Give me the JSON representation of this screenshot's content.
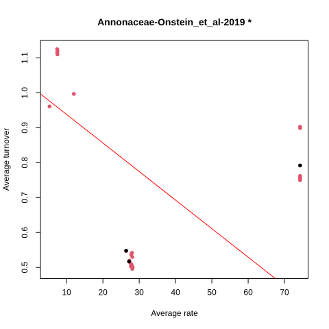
{
  "chart_data": {
    "type": "scatter",
    "title": "Annonaceae-Onstein_et_al-2019 *",
    "xlabel": "Average rate",
    "ylabel": "Average turnover",
    "xlim": [
      2.8,
      76.5
    ],
    "ylim": [
      0.468,
      1.15
    ],
    "x_ticks": [
      10,
      20,
      30,
      40,
      50,
      60,
      70
    ],
    "y_ticks": [
      0.5,
      0.6,
      0.7,
      0.8,
      0.9,
      1.0,
      1.1
    ],
    "y_tick_labels": [
      "0.5",
      "0.6",
      "0.7",
      "0.8",
      "0.9",
      "1.0",
      "1.1"
    ],
    "grid": false,
    "colors": {
      "points": "#DF536B",
      "highlight": "#000000",
      "trend": "#FF0000"
    },
    "series": [
      {
        "values": [
          {
            "x": 7.4,
            "y": 1.125
          },
          {
            "x": 7.5,
            "y": 1.12
          },
          {
            "x": 7.4,
            "y": 1.115
          },
          {
            "x": 7.5,
            "y": 1.11
          },
          {
            "x": 12.0,
            "y": 0.997
          },
          {
            "x": 5.3,
            "y": 0.961
          },
          {
            "x": 74.3,
            "y": 0.903
          },
          {
            "x": 74.3,
            "y": 0.899
          },
          {
            "x": 74.3,
            "y": 0.762
          },
          {
            "x": 74.3,
            "y": 0.758
          },
          {
            "x": 74.3,
            "y": 0.754
          },
          {
            "x": 74.3,
            "y": 0.75
          },
          {
            "x": 26.4,
            "y": 0.547
          },
          {
            "x": 28.0,
            "y": 0.542
          },
          {
            "x": 27.8,
            "y": 0.537
          },
          {
            "x": 28.1,
            "y": 0.53
          },
          {
            "x": 27.3,
            "y": 0.52
          },
          {
            "x": 27.6,
            "y": 0.512
          },
          {
            "x": 27.9,
            "y": 0.508
          },
          {
            "x": 28.0,
            "y": 0.505
          },
          {
            "x": 28.2,
            "y": 0.5
          },
          {
            "x": 28.1,
            "y": 0.496
          },
          {
            "x": 27.7,
            "y": 0.503
          }
        ]
      },
      {
        "values": [
          {
            "x": 74.3,
            "y": 0.792
          },
          {
            "x": 26.4,
            "y": 0.548
          },
          {
            "x": 27.2,
            "y": 0.517
          }
        ]
      }
    ],
    "trend_line": {
      "x": [
        2.8,
        67.5
      ],
      "y": [
        0.997,
        0.468
      ]
    }
  }
}
